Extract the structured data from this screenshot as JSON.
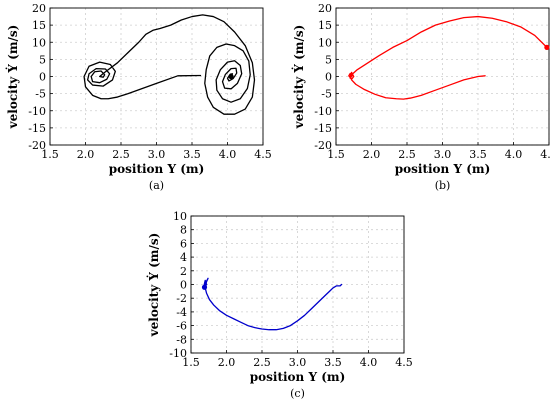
{
  "chart_data": [
    {
      "id": "a",
      "type": "line",
      "caption": "(a)",
      "xlabel": "position Y (m)",
      "ylabel": "velocity Ẏ (m/s)",
      "xlim": [
        1.5,
        4.5
      ],
      "ylim": [
        -20,
        20
      ],
      "xticks": [
        "1.5",
        "2.0",
        "2.5",
        "3.0",
        "3.5",
        "4.0",
        "4.5"
      ],
      "yticks": [
        "20",
        "15",
        "10",
        "5",
        "0",
        "-5",
        "-10",
        "-15",
        "-20"
      ],
      "grid": true,
      "series": [
        {
          "color": "#000000",
          "x": [
            3.62,
            3.3,
            3.0,
            2.8,
            2.6,
            2.45,
            2.32,
            2.22,
            2.1,
            2.0,
            1.98,
            2.05,
            2.2,
            2.35,
            2.42,
            2.38,
            2.25,
            2.1,
            2.03,
            2.05,
            2.15,
            2.28,
            2.34,
            2.3,
            2.2,
            2.1,
            2.08,
            2.13,
            2.22,
            2.27,
            2.25,
            2.2,
            2.27,
            2.45,
            2.6,
            2.75,
            2.85,
            2.95,
            3.05,
            3.2,
            3.35,
            3.5,
            3.65,
            3.8,
            3.95,
            4.1,
            4.25,
            4.35,
            4.38,
            4.35,
            4.25,
            4.1,
            3.95,
            3.8,
            3.72,
            3.68,
            3.7,
            3.75,
            3.85,
            3.98,
            4.1,
            4.22,
            4.3,
            4.32,
            4.28,
            4.18,
            4.05,
            3.93,
            3.85,
            3.84,
            3.9,
            4.0,
            4.1,
            4.18,
            4.2,
            4.14,
            4.05,
            3.96,
            3.93,
            3.97,
            4.05,
            4.12,
            4.13,
            4.08,
            4.02,
            4.0,
            4.04,
            4.07,
            4.05
          ],
          "y": [
            0.3,
            0.2,
            -2.0,
            -3.5,
            -5.0,
            -6.0,
            -6.5,
            -6.5,
            -5.5,
            -3.0,
            0.0,
            3.0,
            4.2,
            3.5,
            1.5,
            -1.0,
            -2.8,
            -2.5,
            -1.0,
            0.8,
            2.3,
            2.2,
            0.8,
            -0.8,
            -1.8,
            -1.5,
            0.0,
            1.4,
            1.6,
            0.5,
            -0.2,
            0.0,
            1.2,
            4.0,
            7.0,
            10.0,
            12.3,
            13.5,
            14.0,
            15.0,
            16.5,
            17.5,
            18.0,
            17.5,
            16.0,
            13.0,
            9.0,
            4.0,
            -1.0,
            -6.0,
            -9.5,
            -11.0,
            -11.0,
            -9.0,
            -6.0,
            -2.0,
            2.0,
            6.0,
            8.5,
            9.5,
            9.0,
            7.5,
            4.5,
            0.5,
            -3.5,
            -6.5,
            -7.5,
            -6.5,
            -4.0,
            -1.0,
            2.0,
            4.2,
            4.6,
            3.2,
            0.8,
            -2.0,
            -3.6,
            -3.4,
            -1.5,
            0.6,
            2.3,
            2.4,
            1.0,
            -0.6,
            -1.3,
            -0.5,
            0.7,
            0.8,
            0.0
          ]
        }
      ]
    },
    {
      "id": "b",
      "type": "line",
      "caption": "(b)",
      "xlabel": "position Y (m)",
      "ylabel": "velocity Ẏ (m/s)",
      "xlim": [
        1.5,
        4.5
      ],
      "ylim": [
        -20,
        20
      ],
      "xticks": [
        "1.5",
        "2.0",
        "2.5",
        "3.0",
        "3.5",
        "4.0",
        "4.5"
      ],
      "yticks": [
        "20",
        "15",
        "10",
        "5",
        "0",
        "-5",
        "-10",
        "-15",
        "-20"
      ],
      "grid": true,
      "series": [
        {
          "color": "#ff0000",
          "x": [
            3.6,
            3.5,
            3.3,
            3.1,
            2.9,
            2.7,
            2.55,
            2.45,
            2.35,
            2.2,
            2.05,
            1.9,
            1.78,
            1.72,
            1.7,
            1.72,
            1.75,
            1.72,
            1.68,
            1.7,
            1.73,
            1.7,
            1.72,
            1.8,
            1.95,
            2.1,
            2.3,
            2.5,
            2.7,
            2.9,
            3.1,
            3.3,
            3.5,
            3.7,
            3.9,
            4.1,
            4.3,
            4.47
          ],
          "y": [
            0.2,
            0.0,
            -1.0,
            -2.5,
            -4.0,
            -5.5,
            -6.3,
            -6.6,
            -6.5,
            -6.2,
            -5.2,
            -3.8,
            -2.3,
            -1.0,
            0.0,
            1.2,
            0.0,
            -0.8,
            0.2,
            0.9,
            0.3,
            -0.5,
            0.5,
            2.0,
            4.0,
            6.0,
            8.5,
            10.5,
            13.0,
            15.0,
            16.2,
            17.2,
            17.5,
            17.0,
            16.0,
            14.5,
            12.0,
            8.5
          ]
        }
      ]
    },
    {
      "id": "c",
      "type": "line",
      "caption": "(c)",
      "xlabel": "position Y (m)",
      "ylabel": "velocity Ẏ (m/s)",
      "xlim": [
        1.5,
        4.5
      ],
      "ylim": [
        -10,
        10
      ],
      "xticks": [
        "1.5",
        "2.0",
        "2.5",
        "3.0",
        "3.5",
        "4.0",
        "4.5"
      ],
      "yticks": [
        "10",
        "8",
        "6",
        "4",
        "2",
        "0",
        "-2",
        "-4",
        "-6",
        "-8",
        "-10"
      ],
      "grid": true,
      "series": [
        {
          "color": "#0000cc",
          "x": [
            3.62,
            3.6,
            3.55,
            3.5,
            3.45,
            3.4,
            3.3,
            3.2,
            3.1,
            3.0,
            2.9,
            2.8,
            2.7,
            2.6,
            2.5,
            2.45,
            2.4,
            2.3,
            2.2,
            2.1,
            2.0,
            1.9,
            1.82,
            1.76,
            1.72,
            1.7,
            1.72,
            1.74,
            1.71,
            1.68,
            1.7,
            1.72,
            1.69
          ],
          "y": [
            0.0,
            -0.2,
            -0.2,
            -0.5,
            -1.0,
            -1.5,
            -2.5,
            -3.5,
            -4.5,
            -5.3,
            -6.0,
            -6.4,
            -6.6,
            -6.6,
            -6.5,
            -6.4,
            -6.3,
            -6.0,
            -5.5,
            -5.0,
            -4.5,
            -3.8,
            -3.0,
            -2.2,
            -1.3,
            -0.5,
            0.5,
            0.9,
            0.2,
            -0.3,
            0.6,
            0.0,
            -0.4
          ]
        }
      ]
    }
  ]
}
